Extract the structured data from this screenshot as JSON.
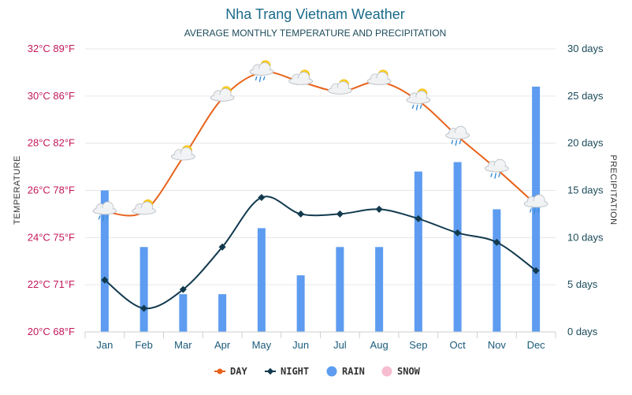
{
  "chart_data": {
    "type": "bar",
    "title": "Nha Trang Vietnam Weather",
    "subtitle": "AVERAGE MONTHLY TEMPERATURE AND PRECIPITATION",
    "ylabel": "TEMPERATURE",
    "y2label": "PRECIPITATION",
    "categories": [
      "Jan",
      "Feb",
      "Mar",
      "Apr",
      "May",
      "Jun",
      "Jul",
      "Aug",
      "Sep",
      "Oct",
      "Nov",
      "Dec"
    ],
    "temperature_ticks": [
      "20°C 68°F",
      "22°C 71°F",
      "24°C 75°F",
      "26°C 78°F",
      "28°C 82°F",
      "30°C 86°F",
      "32°C 89°F"
    ],
    "precipitation_ticks": [
      "0 days",
      "5 days",
      "10 days",
      "15 days",
      "20 days",
      "25 days",
      "30 days"
    ],
    "ylim": [
      20,
      32
    ],
    "y2lim": [
      0,
      30
    ],
    "grid": true,
    "legend_position": "bottom",
    "series": [
      {
        "name": "DAY",
        "kind": "line",
        "unit": "°C",
        "color": "#e8621a",
        "values": [
          25.1,
          25.1,
          27.4,
          29.9,
          31.0,
          30.6,
          30.2,
          30.6,
          29.8,
          28.3,
          26.9,
          25.4
        ]
      },
      {
        "name": "NIGHT",
        "kind": "line",
        "unit": "°C",
        "color": "#123a4e",
        "values": [
          22.2,
          21.0,
          21.8,
          23.6,
          25.7,
          25.0,
          25.0,
          25.2,
          24.8,
          24.2,
          23.8,
          22.6
        ]
      },
      {
        "name": "RAIN",
        "kind": "bar",
        "unit": "days",
        "color": "#5d9cf0",
        "values": [
          15,
          9,
          4,
          4,
          11,
          6,
          9,
          9,
          17,
          18,
          13,
          26
        ]
      },
      {
        "name": "SNOW",
        "kind": "bar",
        "unit": "days",
        "color": "#f7bcd0",
        "values": [
          0,
          0,
          0,
          0,
          0,
          0,
          0,
          0,
          0,
          0,
          0,
          0
        ]
      }
    ],
    "weather_icons": [
      "rain-icon",
      "partly-cloudy-icon",
      "partly-cloudy-icon",
      "partly-cloudy-icon",
      "partly-cloudy-rain-icon",
      "partly-cloudy-icon",
      "partly-cloudy-icon",
      "partly-cloudy-icon",
      "partly-cloudy-rain-icon",
      "rain-icon",
      "rain-icon",
      "rain-icon"
    ]
  }
}
